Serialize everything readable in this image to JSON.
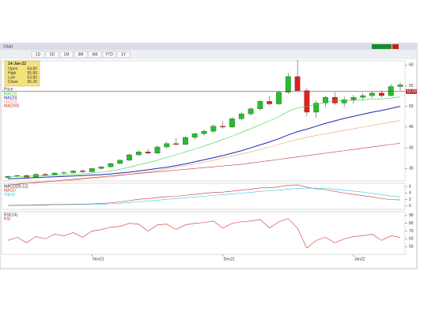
{
  "window": {
    "title": "Chart",
    "toolbar": [
      "1D",
      "5D",
      "1M",
      "3M",
      "6M",
      "YTD",
      "1Y"
    ],
    "info_box": {
      "title": "14-Jan-22",
      "rows": [
        [
          "Open",
          "54.80"
        ],
        [
          "High",
          "55.80"
        ],
        [
          "Low",
          "53.80"
        ],
        [
          "Close",
          "55.20"
        ]
      ]
    }
  },
  "chart_data": [
    {
      "type": "candlestick",
      "title": "Price",
      "up_color": "#22c02a",
      "down_color": "#e0201c",
      "open": [
        32.8,
        33.1,
        33.3,
        32.9,
        33.6,
        33.4,
        33.9,
        34.0,
        34.4,
        34.2,
        35.0,
        35.4,
        36.2,
        37.0,
        38.3,
        39.0,
        38.7,
        40.2,
        41.0,
        40.8,
        42.5,
        43.4,
        44.0,
        45.2,
        45.0,
        47.0,
        48.2,
        49.4,
        51.2,
        50.6,
        53.4,
        57.2,
        53.8,
        48.6,
        50.8,
        52.2,
        50.8,
        51.6,
        52.2,
        52.6,
        53.2,
        52.6,
        54.8
      ],
      "high": [
        33.3,
        33.5,
        33.6,
        33.8,
        34.0,
        34.1,
        34.3,
        34.6,
        34.8,
        35.2,
        35.6,
        36.4,
        37.2,
        38.6,
        39.5,
        39.8,
        40.6,
        41.4,
        42.4,
        42.8,
        43.6,
        44.4,
        45.6,
        46.4,
        47.4,
        48.6,
        49.8,
        51.6,
        52.4,
        53.8,
        58.0,
        61.2,
        54.4,
        51.4,
        52.6,
        53.4,
        52.4,
        52.8,
        53.2,
        53.6,
        53.8,
        55.4,
        55.8
      ],
      "low": [
        32.6,
        32.9,
        32.8,
        32.8,
        33.2,
        33.3,
        33.6,
        33.8,
        34.0,
        34.1,
        34.8,
        35.2,
        36.0,
        36.8,
        38.0,
        38.4,
        38.5,
        39.8,
        40.6,
        40.6,
        42.0,
        43.0,
        43.6,
        44.6,
        44.8,
        46.6,
        47.8,
        49.0,
        50.2,
        50.4,
        53.0,
        53.6,
        47.6,
        47.2,
        49.8,
        50.4,
        49.8,
        50.6,
        51.4,
        52.0,
        52.2,
        52.4,
        53.8
      ],
      "close": [
        33.1,
        33.3,
        32.9,
        33.6,
        33.4,
        33.9,
        34.0,
        34.4,
        34.2,
        35.0,
        35.4,
        36.2,
        37.0,
        38.3,
        39.0,
        38.7,
        40.2,
        41.0,
        40.8,
        42.5,
        43.4,
        44.0,
        45.2,
        45.0,
        47.0,
        48.2,
        49.4,
        51.2,
        50.6,
        53.4,
        57.2,
        53.8,
        48.6,
        50.8,
        52.2,
        50.8,
        51.6,
        52.2,
        52.6,
        53.2,
        52.6,
        54.8,
        55.2
      ],
      "series": [
        {
          "name": "MA(10)",
          "color": "#3cd04a",
          "values": [
            33,
            33.1,
            33.1,
            33.2,
            33.3,
            33.4,
            33.5,
            33.6,
            33.7,
            33.9,
            34.1,
            34.4,
            34.8,
            35.3,
            35.9,
            36.4,
            37.0,
            37.7,
            38.3,
            39.0,
            39.7,
            40.4,
            41.2,
            42.0,
            42.8,
            43.7,
            44.6,
            45.6,
            46.5,
            47.5,
            48.8,
            49.6,
            50.0,
            50.5,
            51.0,
            51.3,
            51.4,
            51.5,
            51.6,
            51.8,
            51.8,
            52.0,
            52.3
          ]
        },
        {
          "name": "MA(20)",
          "color": "#1a2db0",
          "values": [
            32.5,
            32.6,
            32.7,
            32.8,
            32.9,
            33.0,
            33.1,
            33.2,
            33.3,
            33.4,
            33.5,
            33.7,
            33.9,
            34.1,
            34.4,
            34.7,
            35.0,
            35.3,
            35.7,
            36.1,
            36.6,
            37.1,
            37.6,
            38.1,
            38.7,
            39.3,
            40.0,
            40.7,
            41.4,
            42.2,
            43.1,
            43.9,
            44.5,
            45.2,
            45.9,
            46.5,
            47.1,
            47.6,
            48.1,
            48.6,
            49.0,
            49.5,
            50.0
          ]
        },
        {
          "name": "MA(50)",
          "color": "#f0a070",
          "values": [
            31.4,
            31.5,
            31.6,
            31.7,
            31.8,
            31.9,
            32.0,
            32.2,
            32.4,
            32.6,
            32.8,
            33.0,
            33.3,
            33.6,
            33.9,
            34.2,
            34.5,
            34.9,
            35.3,
            35.7,
            36.1,
            36.5,
            37.0,
            37.5,
            38.0,
            38.5,
            39.0,
            39.6,
            40.2,
            40.8,
            41.4,
            42.0,
            42.5,
            43.0,
            43.4,
            43.8,
            44.2,
            44.6,
            45.0,
            45.4,
            45.8,
            46.2,
            46.6
          ]
        },
        {
          "name": "MA(200)",
          "color": "#c83030",
          "values": [
            31.0,
            31.2,
            31.4,
            31.6,
            31.8,
            32.0,
            32.2,
            32.4,
            32.6,
            32.8,
            33.0,
            33.2,
            33.4,
            33.6,
            33.8,
            34.0,
            34.2,
            34.4,
            34.6,
            34.8,
            35.0,
            35.2,
            35.4,
            35.6,
            35.8,
            36.0,
            36.3,
            36.6,
            36.9,
            37.2,
            37.5,
            37.8,
            38.1,
            38.4,
            38.7,
            39.0,
            39.3,
            39.6,
            39.9,
            40.2,
            40.5,
            40.8,
            41.1
          ]
        }
      ],
      "price_line": {
        "value": 53.6,
        "label": "53.60",
        "color": "#b02020"
      },
      "ylim": [
        32,
        61
      ],
      "yticks": [
        35,
        40,
        45,
        50,
        55,
        60
      ]
    },
    {
      "type": "line",
      "title": "MACD(26,12)",
      "series": [
        {
          "name": "MACD",
          "color": "#d03030",
          "values": [
            0.2,
            0.3,
            0.3,
            0.4,
            0.4,
            0.5,
            0.5,
            0.6,
            0.6,
            0.7,
            0.8,
            1.0,
            1.3,
            1.7,
            2.1,
            2.3,
            2.6,
            2.9,
            3.0,
            3.3,
            3.6,
            3.9,
            4.2,
            4.3,
            4.6,
            4.9,
            5.2,
            5.6,
            5.6,
            5.9,
            6.4,
            6.5,
            5.8,
            5.3,
            5.0,
            4.5,
            4.0,
            3.6,
            3.2,
            2.8,
            2.3,
            2.0,
            1.9
          ]
        },
        {
          "name": "Signal",
          "color": "#30c8e0",
          "values": [
            0.1,
            0.2,
            0.2,
            0.3,
            0.3,
            0.4,
            0.4,
            0.5,
            0.5,
            0.6,
            0.6,
            0.7,
            0.9,
            1.1,
            1.3,
            1.6,
            1.8,
            2.1,
            2.3,
            2.5,
            2.8,
            3.0,
            3.3,
            3.5,
            3.7,
            4.0,
            4.2,
            4.5,
            4.7,
            4.9,
            5.2,
            5.4,
            5.5,
            5.5,
            5.4,
            5.2,
            4.9,
            4.6,
            4.3,
            3.9,
            3.5,
            3.1,
            2.8
          ]
        }
      ],
      "ylim": [
        -1,
        7
      ],
      "yticks": [
        0,
        2,
        4,
        6
      ]
    },
    {
      "type": "line",
      "title": "RSI(14)",
      "categories": [
        null,
        null,
        null,
        null,
        null,
        null,
        null,
        null,
        null,
        "Nov21",
        null,
        null,
        null,
        null,
        null,
        null,
        null,
        null,
        null,
        null,
        null,
        null,
        null,
        "Dec21",
        null,
        null,
        null,
        null,
        null,
        null,
        null,
        null,
        null,
        null,
        null,
        null,
        null,
        "Jan22",
        null,
        null,
        null,
        null,
        null
      ],
      "series": [
        {
          "name": "RSI",
          "color": "#d03030",
          "values": [
            58,
            62,
            55,
            63,
            60,
            66,
            64,
            68,
            62,
            70,
            72,
            75,
            76,
            80,
            79,
            70,
            78,
            79,
            72,
            78,
            80,
            81,
            83,
            74,
            80,
            82,
            83,
            85,
            74,
            82,
            86,
            74,
            48,
            58,
            62,
            55,
            60,
            63,
            64,
            66,
            58,
            64,
            62
          ]
        }
      ],
      "ylim": [
        40,
        95
      ],
      "yticks": [
        50,
        60,
        70,
        80,
        90
      ]
    }
  ]
}
